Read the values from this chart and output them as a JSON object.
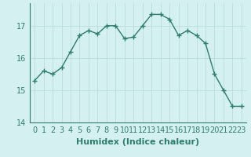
{
  "x": [
    0,
    1,
    2,
    3,
    4,
    5,
    6,
    7,
    8,
    9,
    10,
    11,
    12,
    13,
    14,
    15,
    16,
    17,
    18,
    19,
    20,
    21,
    22,
    23
  ],
  "y": [
    15.3,
    15.6,
    15.5,
    15.7,
    16.2,
    16.7,
    16.85,
    16.75,
    17.0,
    17.0,
    16.6,
    16.65,
    17.0,
    17.35,
    17.35,
    17.2,
    16.7,
    16.85,
    16.7,
    16.45,
    15.5,
    15.0,
    14.5,
    14.5
  ],
  "line_color": "#2e7d6e",
  "marker": "+",
  "marker_size": 4,
  "bg_color": "#d4f0f0",
  "grid_color": "#b8dede",
  "xlabel": "Humidex (Indice chaleur)",
  "ylim": [
    14.0,
    17.7
  ],
  "xlim": [
    -0.5,
    23.5
  ],
  "yticks": [
    14,
    15,
    16,
    17
  ],
  "xtick_labels": [
    "0",
    "1",
    "2",
    "3",
    "4",
    "5",
    "6",
    "7",
    "8",
    "9",
    "10",
    "11",
    "12",
    "13",
    "14",
    "15",
    "16",
    "17",
    "18",
    "19",
    "20",
    "21",
    "22",
    "23"
  ],
  "xlabel_fontsize": 8,
  "tick_fontsize": 7,
  "linewidth": 1.0
}
